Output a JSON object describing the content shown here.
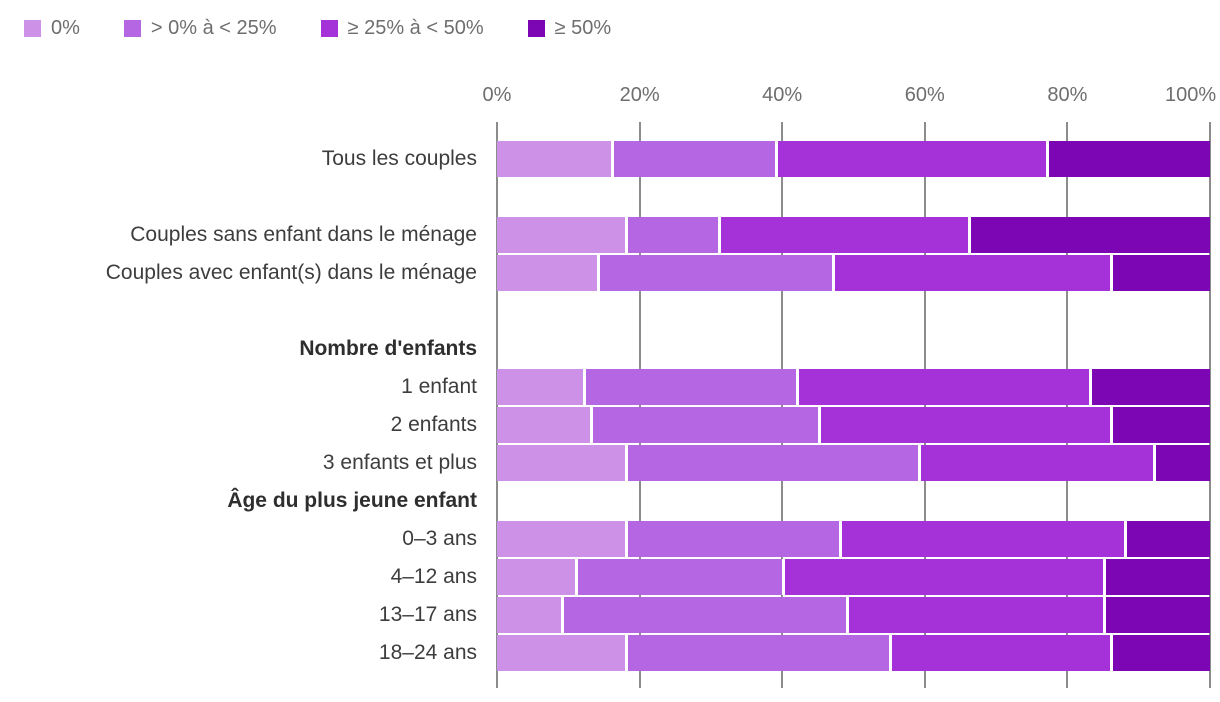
{
  "chart_data": {
    "type": "bar",
    "orientation": "horizontal",
    "stacked": true,
    "unit": "percent",
    "x_axis": {
      "min": 0,
      "max": 100,
      "ticks": [
        "0%",
        "20%",
        "40%",
        "60%",
        "80%",
        "100%"
      ],
      "tick_values": [
        0,
        20,
        40,
        60,
        80,
        100
      ],
      "grid": true,
      "position": "top"
    },
    "legend": {
      "position": "top-left",
      "items": [
        {
          "label": "0%",
          "color": "#cd92e8"
        },
        {
          "label": "> 0% à < 25%",
          "color": "#b566e2"
        },
        {
          "label": "≥ 25% à < 50%",
          "color": "#a531d8"
        },
        {
          "label": "≥ 50%",
          "color": "#7c06b4"
        }
      ]
    },
    "series_colors": [
      "#cd92e8",
      "#b566e2",
      "#a531d8",
      "#7c06b4"
    ],
    "rows": [
      {
        "type": "bar",
        "label": "Tous les couples",
        "values": [
          16,
          23,
          38,
          23
        ]
      },
      {
        "type": "spacer",
        "label": ""
      },
      {
        "type": "bar",
        "label": "Couples sans enfant dans le ménage",
        "values": [
          18,
          13,
          35,
          34
        ]
      },
      {
        "type": "bar",
        "label": "Couples avec enfant(s) dans le ménage",
        "values": [
          14,
          33,
          39,
          14
        ]
      },
      {
        "type": "spacer",
        "label": ""
      },
      {
        "type": "header",
        "label": "Nombre d'enfants"
      },
      {
        "type": "bar",
        "label": "1 enfant",
        "values": [
          12,
          30,
          41,
          17
        ]
      },
      {
        "type": "bar",
        "label": "2 enfants",
        "values": [
          13,
          32,
          41,
          14
        ]
      },
      {
        "type": "bar",
        "label": "3 enfants et plus",
        "values": [
          18,
          41,
          33,
          8
        ]
      },
      {
        "type": "header",
        "label": "Âge du plus jeune enfant"
      },
      {
        "type": "bar",
        "label": "0–3 ans",
        "values": [
          18,
          30,
          40,
          12
        ]
      },
      {
        "type": "bar",
        "label": "4–12 ans",
        "values": [
          11,
          29,
          45,
          15
        ]
      },
      {
        "type": "bar",
        "label": "13–17 ans",
        "values": [
          9,
          40,
          36,
          15
        ]
      },
      {
        "type": "bar",
        "label": "18–24 ans",
        "values": [
          18,
          37,
          31,
          14
        ]
      }
    ]
  },
  "colors": {
    "gridline": "#8c8c8c",
    "axis_text": "#6e6e6e",
    "label_text": "#3d3d3d",
    "background": "#ffffff"
  }
}
